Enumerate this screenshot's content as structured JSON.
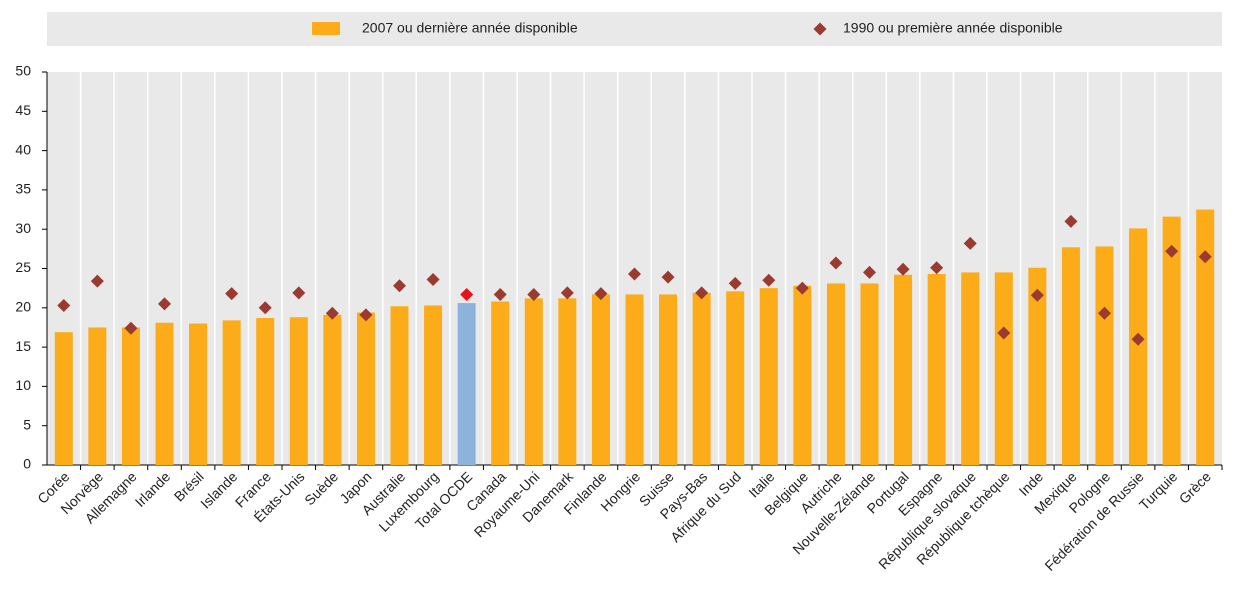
{
  "chart_data": {
    "type": "bar",
    "categories": [
      "Corée",
      "Norvège",
      "Allemagne",
      "Irlande",
      "Brésil",
      "Islande",
      "France",
      "États-Unis",
      "Suède",
      "Japon",
      "Australie",
      "Luxembourg",
      "Total OCDE",
      "Canada",
      "Royaume-Uni",
      "Danemark",
      "Finlande",
      "Hongrie",
      "Suisse",
      "Pays-Bas",
      "Afrique du Sud",
      "Italie",
      "Belgique",
      "Autriche",
      "Nouvelle-Zélande",
      "Portugal",
      "Espagne",
      "République slovaque",
      "République tchèque",
      "Inde",
      "Mexique",
      "Pologne",
      "Fédération de Russie",
      "Turquie",
      "Grèce"
    ],
    "series": [
      {
        "name": "2007 ou dernière année disponible",
        "mark": "bar",
        "color": "#fbac18",
        "colors": [
          "#fbac18",
          "#fbac18",
          "#fbac18",
          "#fbac18",
          "#fbac18",
          "#fbac18",
          "#fbac18",
          "#fbac18",
          "#fbac18",
          "#fbac18",
          "#fbac18",
          "#fbac18",
          "#8db3da",
          "#fbac18",
          "#fbac18",
          "#fbac18",
          "#fbac18",
          "#fbac18",
          "#fbac18",
          "#fbac18",
          "#fbac18",
          "#fbac18",
          "#fbac18",
          "#fbac18",
          "#fbac18",
          "#fbac18",
          "#fbac18",
          "#fbac18",
          "#fbac18",
          "#fbac18",
          "#fbac18",
          "#fbac18",
          "#fbac18",
          "#fbac18",
          "#fbac18"
        ],
        "values": [
          16.9,
          17.5,
          17.5,
          18.1,
          18.0,
          18.4,
          18.7,
          18.8,
          19.1,
          19.4,
          20.2,
          20.3,
          20.6,
          20.8,
          21.2,
          21.2,
          21.7,
          21.7,
          21.7,
          21.9,
          22.1,
          22.5,
          22.8,
          23.1,
          23.1,
          24.2,
          24.3,
          24.5,
          24.5,
          25.1,
          27.7,
          27.8,
          30.1,
          31.6,
          32.5
        ]
      },
      {
        "name": "1990 ou première année disponible",
        "mark": "diamond",
        "color": "#9b3a2e",
        "colors": [
          "#9b3a2e",
          "#9b3a2e",
          "#9b3a2e",
          "#9b3a2e",
          "#9b3a2e",
          "#9b3a2e",
          "#9b3a2e",
          "#9b3a2e",
          "#9b3a2e",
          "#9b3a2e",
          "#9b3a2e",
          "#9b3a2e",
          "#e5141b",
          "#9b3a2e",
          "#9b3a2e",
          "#9b3a2e",
          "#9b3a2e",
          "#9b3a2e",
          "#9b3a2e",
          "#9b3a2e",
          "#9b3a2e",
          "#9b3a2e",
          "#9b3a2e",
          "#9b3a2e",
          "#9b3a2e",
          "#9b3a2e",
          "#9b3a2e",
          "#9b3a2e",
          "#9b3a2e",
          "#9b3a2e",
          "#9b3a2e",
          "#9b3a2e",
          "#9b3a2e",
          "#9b3a2e",
          "#9b3a2e"
        ],
        "values": [
          20.3,
          23.4,
          17.4,
          20.5,
          null,
          21.8,
          20.0,
          21.9,
          19.3,
          19.1,
          22.8,
          23.6,
          21.7,
          21.7,
          21.7,
          21.9,
          21.8,
          24.3,
          23.9,
          21.9,
          23.1,
          23.5,
          22.5,
          25.7,
          24.5,
          24.9,
          25.1,
          28.2,
          16.8,
          21.6,
          31.0,
          19.3,
          16.0,
          27.2,
          26.5
        ]
      }
    ],
    "ylim": [
      0,
      50
    ],
    "yticks": [
      0,
      5,
      10,
      15,
      20,
      25,
      30,
      35,
      40,
      45,
      50
    ],
    "legend": "top"
  }
}
